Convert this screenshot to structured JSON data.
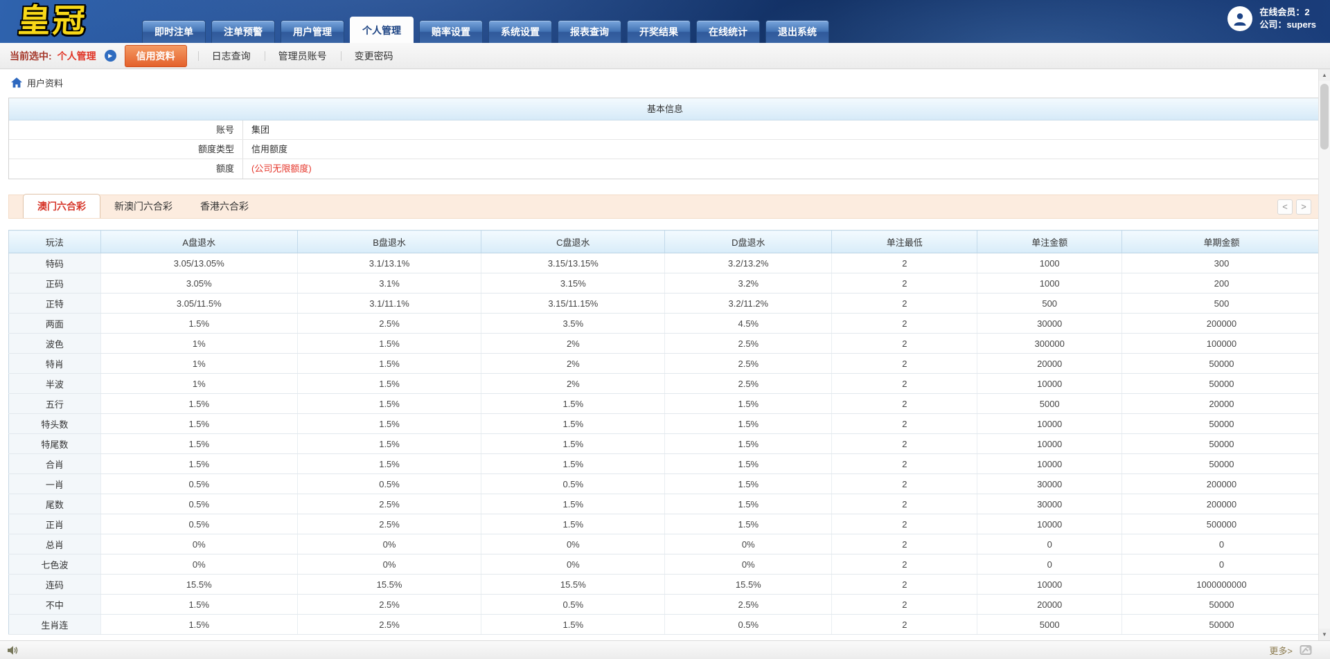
{
  "brand": {
    "logo": "皇冠"
  },
  "header": {
    "tabs": [
      {
        "label": "即时注单",
        "active": false
      },
      {
        "label": "注单预警",
        "active": false
      },
      {
        "label": "用户管理",
        "active": false
      },
      {
        "label": "个人管理",
        "active": true
      },
      {
        "label": "赔率设置",
        "active": false
      },
      {
        "label": "系统设置",
        "active": false
      },
      {
        "label": "报表查询",
        "active": false
      },
      {
        "label": "开奖结果",
        "active": false
      },
      {
        "label": "在线统计",
        "active": false
      },
      {
        "label": "退出系统",
        "active": false
      }
    ],
    "user": {
      "online_label": "在线会员：",
      "online_value": "2",
      "company_label": "公司：",
      "company_value": "supers"
    }
  },
  "subnav": {
    "current_label": "当前选中:",
    "current_value": "个人管理",
    "arrow_glyph": "▶",
    "items": [
      {
        "label": "信用资料",
        "active": true
      },
      {
        "label": "日志查询",
        "active": false
      },
      {
        "label": "管理员账号",
        "active": false
      },
      {
        "label": "变更密码",
        "active": false
      }
    ]
  },
  "breadcrumb": {
    "label": "用户资料"
  },
  "basic_info": {
    "title": "基本信息",
    "rows": [
      {
        "label": "账号",
        "value": "集团",
        "red": false
      },
      {
        "label": "额度类型",
        "value": "信用额度",
        "red": false
      },
      {
        "label": "额度",
        "value": "(公司无限额度)",
        "red": true
      }
    ]
  },
  "lottery_tabs": {
    "prev_glyph": "<",
    "next_glyph": ">",
    "items": [
      {
        "label": "澳门六合彩",
        "active": true
      },
      {
        "label": "新澳门六合彩",
        "active": false
      },
      {
        "label": "香港六合彩",
        "active": false
      }
    ]
  },
  "table": {
    "headers": [
      "玩法",
      "A盘退水",
      "B盘退水",
      "C盘退水",
      "D盘退水",
      "单注最低",
      "单注金额",
      "单期金额"
    ],
    "rows": [
      [
        "特码",
        "3.05/13.05%",
        "3.1/13.1%",
        "3.15/13.15%",
        "3.2/13.2%",
        "2",
        "1000",
        "300"
      ],
      [
        "正码",
        "3.05%",
        "3.1%",
        "3.15%",
        "3.2%",
        "2",
        "1000",
        "200"
      ],
      [
        "正特",
        "3.05/11.5%",
        "3.1/11.1%",
        "3.15/11.15%",
        "3.2/11.2%",
        "2",
        "500",
        "500"
      ],
      [
        "两面",
        "1.5%",
        "2.5%",
        "3.5%",
        "4.5%",
        "2",
        "30000",
        "200000"
      ],
      [
        "波色",
        "1%",
        "1.5%",
        "2%",
        "2.5%",
        "2",
        "300000",
        "100000"
      ],
      [
        "特肖",
        "1%",
        "1.5%",
        "2%",
        "2.5%",
        "2",
        "20000",
        "50000"
      ],
      [
        "半波",
        "1%",
        "1.5%",
        "2%",
        "2.5%",
        "2",
        "10000",
        "50000"
      ],
      [
        "五行",
        "1.5%",
        "1.5%",
        "1.5%",
        "1.5%",
        "2",
        "5000",
        "20000"
      ],
      [
        "特头数",
        "1.5%",
        "1.5%",
        "1.5%",
        "1.5%",
        "2",
        "10000",
        "50000"
      ],
      [
        "特尾数",
        "1.5%",
        "1.5%",
        "1.5%",
        "1.5%",
        "2",
        "10000",
        "50000"
      ],
      [
        "合肖",
        "1.5%",
        "1.5%",
        "1.5%",
        "1.5%",
        "2",
        "10000",
        "50000"
      ],
      [
        "一肖",
        "0.5%",
        "0.5%",
        "0.5%",
        "1.5%",
        "2",
        "30000",
        "200000"
      ],
      [
        "尾数",
        "0.5%",
        "2.5%",
        "1.5%",
        "1.5%",
        "2",
        "30000",
        "200000"
      ],
      [
        "正肖",
        "0.5%",
        "2.5%",
        "1.5%",
        "1.5%",
        "2",
        "10000",
        "500000"
      ],
      [
        "总肖",
        "0%",
        "0%",
        "0%",
        "0%",
        "2",
        "0",
        "0"
      ],
      [
        "七色波",
        "0%",
        "0%",
        "0%",
        "0%",
        "2",
        "0",
        "0"
      ],
      [
        "连码",
        "15.5%",
        "15.5%",
        "15.5%",
        "15.5%",
        "2",
        "10000",
        "1000000000"
      ],
      [
        "不中",
        "1.5%",
        "2.5%",
        "0.5%",
        "2.5%",
        "2",
        "20000",
        "50000"
      ],
      [
        "生肖连",
        "1.5%",
        "2.5%",
        "1.5%",
        "0.5%",
        "2",
        "5000",
        "50000"
      ]
    ]
  },
  "scrollbar": {
    "up_glyph": "▲",
    "down_glyph": "▼"
  },
  "footer": {
    "more_label": "更多>"
  },
  "icons": {
    "avatar": "person-icon",
    "breadcrumb": "home-icon",
    "subnav_arrow": "play-arrow-icon",
    "footer_left": "speaker-icon",
    "footer_right": "image-link-icon"
  },
  "colors": {
    "header_navy": "#1d4486",
    "logo_yellow": "#f8d818",
    "accent_orange": "#e4612c",
    "selected_red": "#d6362a",
    "value_red": "#e5352a",
    "table_header_blue": "#d8ecf9",
    "strip_peach": "#fcecdf"
  }
}
